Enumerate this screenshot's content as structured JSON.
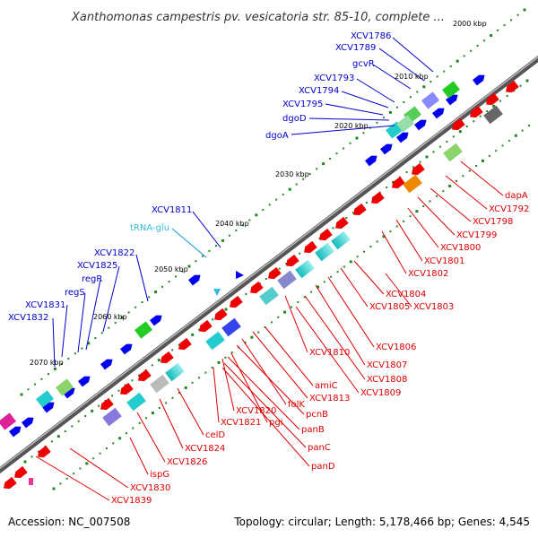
{
  "title": "Xanthomonas campestris pv. vesicatoria str. 85-10, complete ...",
  "footer": {
    "accession": "Accession: NC_007508",
    "summary": "Topology: circular; Length: 5,178,466 bp; Genes: 4,545"
  },
  "colors": {
    "plus_gene": "#0000ee",
    "minus_gene": "#ee0000",
    "plus_label": "#0000cc",
    "minus_label": "#dd0000",
    "trna": "#33bbdd",
    "backbone": "#777777",
    "tick_dots": "#228822",
    "cds_block": "#22cccc"
  },
  "ticks": [
    {
      "label": "2000 kbp"
    },
    {
      "label": "2010 kbp"
    },
    {
      "label": "2020 kbp"
    },
    {
      "label": "2030 kbp"
    },
    {
      "label": "2040 kbp"
    },
    {
      "label": "2050 kbp"
    },
    {
      "label": "2060 kbp"
    },
    {
      "label": "2070 kbp"
    }
  ],
  "plus_labels": [
    {
      "text": "XCV1786"
    },
    {
      "text": "XCV1789"
    },
    {
      "text": "gcvR"
    },
    {
      "text": "XCV1793"
    },
    {
      "text": "XCV1794"
    },
    {
      "text": "XCV1795"
    },
    {
      "text": "dgoD"
    },
    {
      "text": "dgoA"
    },
    {
      "text": "XCV1811"
    },
    {
      "text": "tRNA-glu"
    },
    {
      "text": "XCV1822"
    },
    {
      "text": "XCV1825"
    },
    {
      "text": "regR"
    },
    {
      "text": "regS"
    },
    {
      "text": "XCV1831"
    },
    {
      "text": "XCV1832"
    }
  ],
  "minus_labels": [
    {
      "text": "dapA"
    },
    {
      "text": "XCV1792"
    },
    {
      "text": "XCV1798"
    },
    {
      "text": "XCV1799"
    },
    {
      "text": "XCV1800"
    },
    {
      "text": "XCV1801"
    },
    {
      "text": "XCV1802"
    },
    {
      "text": "XCV1804"
    },
    {
      "text": "XCV1805"
    },
    {
      "text": "XCV1803"
    },
    {
      "text": "XCV1806"
    },
    {
      "text": "XCV1810"
    },
    {
      "text": "XCV1807"
    },
    {
      "text": "XCV1808"
    },
    {
      "text": "amiC"
    },
    {
      "text": "XCV1809"
    },
    {
      "text": "XCV1813"
    },
    {
      "text": "folK"
    },
    {
      "text": "pcnB"
    },
    {
      "text": "XCV1820"
    },
    {
      "text": "pgi"
    },
    {
      "text": "panB"
    },
    {
      "text": "XCV1821"
    },
    {
      "text": "celD"
    },
    {
      "text": "panC"
    },
    {
      "text": "XCV1824"
    },
    {
      "text": "panD"
    },
    {
      "text": "XCV1826"
    },
    {
      "text": "ispG"
    },
    {
      "text": "XCV1830"
    },
    {
      "text": "XCV1839"
    }
  ]
}
